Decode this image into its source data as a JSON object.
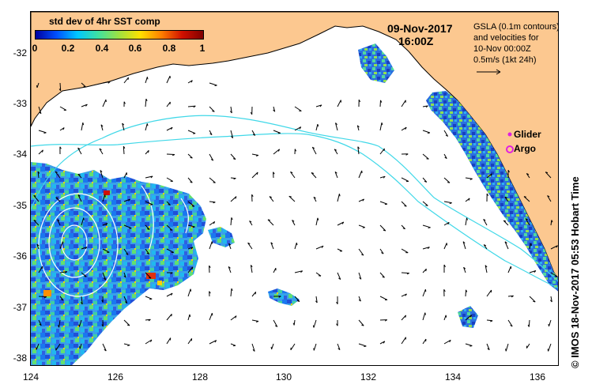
{
  "title": {
    "colorbar_title": "std dev of 4hr SST comp",
    "date": "09-Nov-2017",
    "time": "16:00Z"
  },
  "colorbar": {
    "ticks": [
      "0",
      "0.2",
      "0.4",
      "0.6",
      "0.8",
      "1"
    ],
    "colors": [
      "#0000a0",
      "#0050ff",
      "#00c8ff",
      "#40e0a0",
      "#a0e040",
      "#ffe000",
      "#ff8000",
      "#d01000",
      "#800000"
    ]
  },
  "gsla_note": {
    "line1": "GSLA (0.1m contours)",
    "line2": "and velocities for",
    "line3": "10-Nov 00:00Z",
    "line4": "0.5m/s (1kt 24h)"
  },
  "legend": {
    "glider_label": "Glider",
    "argo_label": "Argo",
    "glider_color": "#e020e0",
    "argo_color": "#e020e0"
  },
  "axes": {
    "lat_labels": [
      "-32",
      "-33",
      "-34",
      "-35",
      "-36",
      "-37",
      "-38"
    ],
    "lon_labels": [
      "124",
      "126",
      "128",
      "130",
      "132",
      "134",
      "136"
    ]
  },
  "credit": "© IMOS 18-Nov-2017 05:53 Hobart Time",
  "colors": {
    "land": "#fcc890",
    "contour": "#40d8e8",
    "eddy": "#ffffff"
  }
}
